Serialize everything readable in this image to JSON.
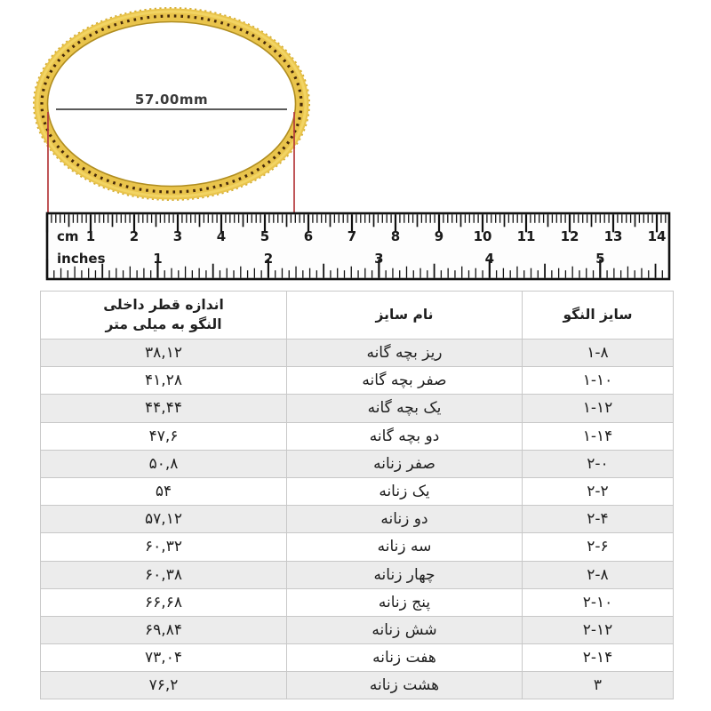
{
  "figure": {
    "diameter_label": "57.00mm"
  },
  "ruler": {
    "cm_label": "cm",
    "inch_label": "inches",
    "cm_numbers": [
      "1",
      "2",
      "3",
      "4",
      "5",
      "6",
      "7",
      "8",
      "9",
      "10",
      "11",
      "12",
      "13",
      "14"
    ],
    "inch_numbers": [
      "1",
      "2",
      "3",
      "4",
      "5"
    ]
  },
  "table": {
    "headers": {
      "size": "سایز النگو",
      "name": "نام سایز",
      "diameter": "اندازه قطر داخلی\nالنگو به میلی متر"
    },
    "rows": [
      {
        "size": "۱-۸",
        "name": "ریز بچه گانه",
        "diameter": "۳۸,۱۲"
      },
      {
        "size": "۱-۱۰",
        "name": "صفر بچه گانه",
        "diameter": "۴۱,۲۸"
      },
      {
        "size": "۱-۱۲",
        "name": "یک بچه گانه",
        "diameter": "۴۴,۴۴"
      },
      {
        "size": "۱-۱۴",
        "name": "دو بچه گانه",
        "diameter": "۴۷,۶"
      },
      {
        "size": "۲-۰",
        "name": "صفر زنانه",
        "diameter": "۵۰,۸"
      },
      {
        "size": "۲-۲",
        "name": "یک زنانه",
        "diameter": "۵۴"
      },
      {
        "size": "۲-۴",
        "name": "دو زنانه",
        "diameter": "۵۷,۱۲"
      },
      {
        "size": "۲-۶",
        "name": "سه زنانه",
        "diameter": "۶۰,۳۲"
      },
      {
        "size": "۲-۸",
        "name": "چهار زنانه",
        "diameter": "۶۰,۳۸"
      },
      {
        "size": "۲-۱۰",
        "name": "پنج زنانه",
        "diameter": "۶۶,۶۸"
      },
      {
        "size": "۲-۱۲",
        "name": "شش زنانه",
        "diameter": "۶۹,۸۴"
      },
      {
        "size": "۲-۱۴",
        "name": "هفت زنانه",
        "diameter": "۷۳,۰۴"
      },
      {
        "size": "۳",
        "name": "هشت زنانه",
        "diameter": "۷۶,۲"
      }
    ]
  },
  "colors": {
    "gold": "#e9c44c",
    "measure_red": "#b5393b",
    "row_stripe": "#ececec"
  }
}
